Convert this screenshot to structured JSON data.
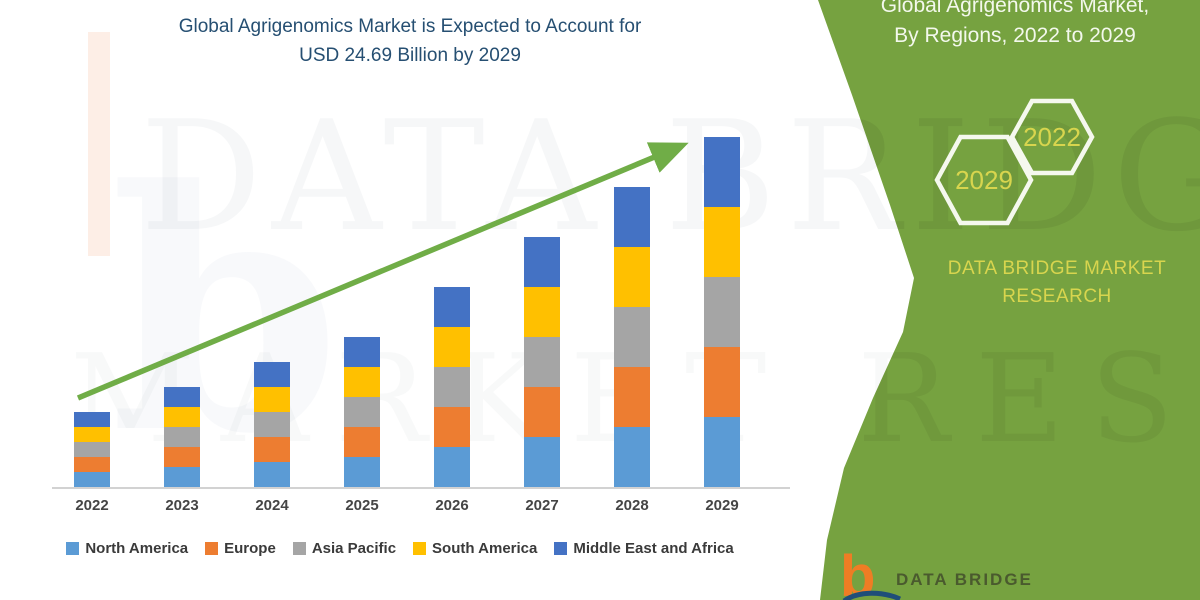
{
  "chart": {
    "title_line1": "Global Agrigenomics Market is Expected to Account for",
    "title_line2": "USD 24.69 Billion by 2029",
    "title_color": "#264f72",
    "arrow_color": "#70ad47",
    "axis_color": "#d2d2d2"
  },
  "chart_data": {
    "type": "bar",
    "stacked": true,
    "title": "Global Agrigenomics Market is Expected to Account for USD 24.69 Billion by 2029",
    "unit": "USD Billion",
    "categories": [
      "2022",
      "2023",
      "2024",
      "2025",
      "2026",
      "2027",
      "2028",
      "2029"
    ],
    "series": [
      {
        "name": "North America",
        "color": "#5b9bd5",
        "values": [
          1.05,
          1.4,
          1.75,
          2.1,
          2.81,
          3.51,
          4.21,
          4.94
        ]
      },
      {
        "name": "Europe",
        "color": "#ed7d31",
        "values": [
          1.05,
          1.4,
          1.75,
          2.1,
          2.81,
          3.51,
          4.21,
          4.94
        ]
      },
      {
        "name": "Asia Pacific",
        "color": "#a5a5a5",
        "values": [
          1.05,
          1.4,
          1.75,
          2.1,
          2.81,
          3.51,
          4.21,
          4.94
        ]
      },
      {
        "name": "South America",
        "color": "#ffc000",
        "values": [
          1.05,
          1.4,
          1.75,
          2.1,
          2.81,
          3.51,
          4.21,
          4.94
        ]
      },
      {
        "name": "Middle East and Africa",
        "color": "#4472c4",
        "values": [
          1.05,
          1.4,
          1.75,
          2.1,
          2.81,
          3.51,
          4.21,
          4.93
        ]
      }
    ],
    "totals_estimated": [
      5.25,
      7.0,
      8.75,
      10.5,
      14.05,
      17.55,
      21.05,
      24.69
    ],
    "ylim": [
      0,
      26
    ],
    "gridlines": false,
    "legend_position": "bottom",
    "annotations": [
      "green upward trend arrow from 2022 bar to 2029 bar"
    ]
  },
  "sidebar": {
    "bg_color": "#76a240",
    "title_line1": "Global Agrigenomics Market,",
    "title_line2": "By Regions, 2022 to 2029",
    "hexagon_left_label": "2029",
    "hexagon_right_label": "2022",
    "accent_text_color": "#d8d54e",
    "brand_line1": "DATA BRIDGE MARKET",
    "brand_line2": "RESEARCH"
  },
  "footer_logo": {
    "b_glyph": "b",
    "text": "DATA BRIDGE"
  },
  "watermark": {
    "line1": "DATA BRIDGE",
    "line2": "MARKET RESEARCH",
    "b_glyph": "b"
  }
}
